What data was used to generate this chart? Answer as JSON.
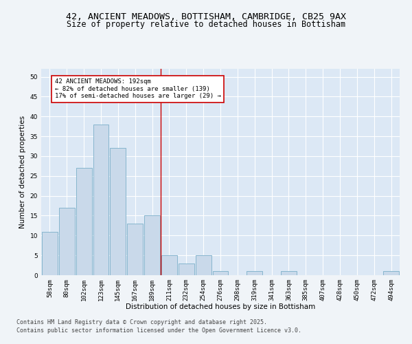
{
  "title_line1": "42, ANCIENT MEADOWS, BOTTISHAM, CAMBRIDGE, CB25 9AX",
  "title_line2": "Size of property relative to detached houses in Bottisham",
  "xlabel": "Distribution of detached houses by size in Bottisham",
  "ylabel": "Number of detached properties",
  "categories": [
    "58sqm",
    "80sqm",
    "102sqm",
    "123sqm",
    "145sqm",
    "167sqm",
    "189sqm",
    "211sqm",
    "232sqm",
    "254sqm",
    "276sqm",
    "298sqm",
    "319sqm",
    "341sqm",
    "363sqm",
    "385sqm",
    "407sqm",
    "428sqm",
    "450sqm",
    "472sqm",
    "494sqm"
  ],
  "values": [
    11,
    17,
    27,
    38,
    32,
    13,
    15,
    5,
    3,
    5,
    1,
    0,
    1,
    0,
    1,
    0,
    0,
    0,
    0,
    0,
    1
  ],
  "bar_color": "#c9d9ea",
  "bar_edge_color": "#7aaec8",
  "background_color": "#dce8f5",
  "grid_color": "#ffffff",
  "red_line_x": 6.5,
  "annotation_text": "42 ANCIENT MEADOWS: 192sqm\n← 82% of detached houses are smaller (139)\n17% of semi-detached houses are larger (29) →",
  "annotation_box_color": "#ffffff",
  "annotation_box_edge": "#cc0000",
  "fig_background": "#f0f4f8",
  "footer_line1": "Contains HM Land Registry data © Crown copyright and database right 2025.",
  "footer_line2": "Contains public sector information licensed under the Open Government Licence v3.0.",
  "ylim": [
    0,
    52
  ],
  "yticks": [
    0,
    5,
    10,
    15,
    20,
    25,
    30,
    35,
    40,
    45,
    50
  ],
  "title_fontsize": 9.5,
  "subtitle_fontsize": 8.5,
  "axis_label_fontsize": 7.5,
  "tick_fontsize": 6.5,
  "annotation_fontsize": 6.5,
  "footer_fontsize": 6.0
}
